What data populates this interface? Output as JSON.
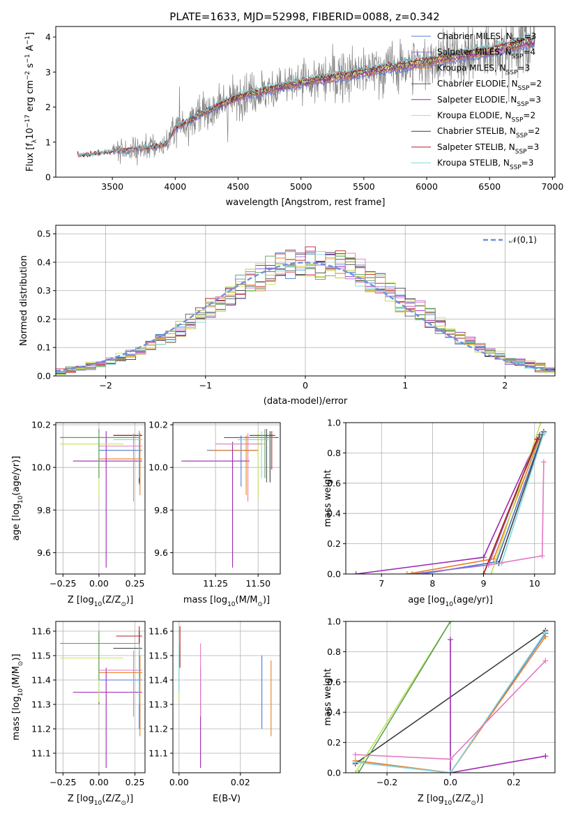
{
  "figure_title": "PLATE=1633, MJD=52998, FIBERID=0088, z=0.342",
  "colors": {
    "Chabrier MILES": "#4c78d0",
    "Salpeter MILES": "#9a6cd2",
    "Kroupa MILES": "#e87d1e",
    "Chabrier ELODIE": "#555555",
    "Salpeter ELODIE": "#9b27b0",
    "Kroupa ELODIE": "#c5e35b",
    "Chabrier STELIB": "#3a3a3a",
    "Salpeter STELIB": "#b21f1f",
    "Kroupa STELIB": "#7fd6e0",
    "pink": "#e377c2",
    "green": "#5a9e5a",
    "olive": "#c9c93a"
  },
  "legend": [
    {
      "text": "Chabrier MILES, N",
      "sub": "SSP",
      "tail": "=3",
      "key": "Chabrier MILES"
    },
    {
      "text": "Salpeter MILES, N",
      "sub": "SSP",
      "tail": "=4",
      "key": "Salpeter MILES"
    },
    {
      "text": "Kroupa MILES, N",
      "sub": "SSP",
      "tail": "=3",
      "key": "Kroupa MILES"
    },
    {
      "text": "Chabrier ELODIE, N",
      "sub": "SSP",
      "tail": "=2",
      "key": "Chabrier ELODIE"
    },
    {
      "text": "Salpeter ELODIE, N",
      "sub": "SSP",
      "tail": "=3",
      "key": "Salpeter ELODIE"
    },
    {
      "text": "Kroupa ELODIE, N",
      "sub": "SSP",
      "tail": "=2",
      "key": "Kroupa ELODIE"
    },
    {
      "text": "Chabrier STELIB, N",
      "sub": "SSP",
      "tail": "=2",
      "key": "Chabrier STELIB"
    },
    {
      "text": "Salpeter STELIB, N",
      "sub": "SSP",
      "tail": "=3",
      "key": "Salpeter STELIB"
    },
    {
      "text": "Kroupa STELIB, N",
      "sub": "SSP",
      "tail": "=3",
      "key": "Kroupa STELIB"
    }
  ],
  "chart_data": [
    {
      "type": "line",
      "id": "spectrum",
      "xlabel": "wavelength [Angstrom, rest frame]",
      "ylabel_parts": [
        "Flux [f",
        "λ",
        "10",
        "−17",
        " erg cm",
        "−2",
        " s",
        "−1",
        " A",
        "−1",
        "]"
      ],
      "xlim": [
        3050,
        7020
      ],
      "ylim": [
        0,
        4.3
      ],
      "xticks": [
        3500,
        4000,
        4500,
        5000,
        5500,
        6000,
        6500,
        7000
      ],
      "yticks": [
        0,
        1,
        2,
        3,
        4
      ],
      "data_range": [
        3220,
        6860
      ],
      "model_anchors": {
        "x": [
          3220,
          3500,
          3800,
          3930,
          4000,
          4200,
          4500,
          5000,
          5500,
          6000,
          6500,
          6860
        ],
        "y": [
          0.6,
          0.72,
          0.85,
          0.95,
          1.4,
          1.8,
          2.3,
          2.7,
          3.0,
          3.3,
          3.6,
          3.9
        ]
      }
    },
    {
      "type": "bar",
      "id": "residuals",
      "xlabel": "(data-model)/error",
      "ylabel": "Normed distribution",
      "xlim": [
        -2.5,
        2.5
      ],
      "ylim": [
        0,
        0.53
      ],
      "xticks": [
        -2,
        -1,
        0,
        1,
        2
      ],
      "xtick_labels": [
        "−2",
        "−1",
        "0",
        "1",
        "2"
      ],
      "yticks": [
        0,
        0.1,
        0.2,
        0.3,
        0.4,
        0.5
      ],
      "ytick_labels": [
        "0.0",
        "0.1",
        "0.2",
        "0.3",
        "0.4",
        "0.5"
      ],
      "bin_width": 0.1,
      "reference": {
        "name": "𝒩(0,1)",
        "mean": 0,
        "sigma": 1
      }
    },
    {
      "type": "scatter",
      "id": "age-vs-Z",
      "xlabel_parts": [
        "Z [log",
        "10",
        "(Z/Z",
        "⊙",
        ")]"
      ],
      "ylabel_parts": [
        "age  [log",
        "10",
        "(age/yr)]"
      ],
      "xlim": [
        -0.3,
        0.32
      ],
      "ylim": [
        9.5,
        10.21
      ],
      "xticks": [
        -0.25,
        0,
        0.25
      ],
      "xtick_labels": [
        "−0.25",
        "0.00",
        "0.25"
      ],
      "yticks": [
        9.6,
        9.8,
        10.0,
        10.2
      ],
      "ytick_labels": [
        "9.6",
        "9.8",
        "10.0",
        "10.2"
      ],
      "points": [
        {
          "c": "Chabrier MILES",
          "x": 0.28,
          "y": 10.08,
          "xlo": 0.0,
          "xhi": 0.3,
          "ylo": 9.92,
          "yhi": 10.15
        },
        {
          "c": "Kroupa MILES",
          "x": 0.285,
          "y": 10.04,
          "xlo": 0.0,
          "xhi": 0.3,
          "ylo": 9.87,
          "yhi": 10.16
        },
        {
          "c": "Chabrier ELODIE",
          "x": 0.0,
          "y": 10.14,
          "xlo": -0.27,
          "xhi": 0.28,
          "ylo": 9.95,
          "yhi": 10.18
        },
        {
          "c": "Salpeter ELODIE",
          "x": 0.05,
          "y": 10.03,
          "xlo": -0.18,
          "xhi": 0.3,
          "ylo": 9.53,
          "yhi": 10.17
        },
        {
          "c": "Kroupa ELODIE",
          "x": 0.0,
          "y": 10.11,
          "xlo": -0.27,
          "xhi": 0.17,
          "ylo": 9.86,
          "yhi": 10.17
        },
        {
          "c": "Chabrier STELIB",
          "x": 0.28,
          "y": 10.15,
          "xlo": 0.1,
          "xhi": 0.3,
          "ylo": 9.93,
          "yhi": 10.17
        },
        {
          "c": "Salpeter STELIB",
          "x": 0.28,
          "y": 10.15,
          "xlo": 0.1,
          "xhi": 0.3,
          "ylo": 9.95,
          "yhi": 10.17
        },
        {
          "c": "Kroupa STELIB",
          "x": 0.28,
          "y": 10.13,
          "xlo": 0.1,
          "xhi": 0.3,
          "ylo": 9.95,
          "yhi": 10.17
        },
        {
          "c": "pink",
          "x": 0.24,
          "y": 10.1,
          "xlo": 0.0,
          "xhi": 0.3,
          "ylo": 9.84,
          "yhi": 10.16
        },
        {
          "c": "green",
          "x": 0.0,
          "y": 10.14,
          "xlo": -0.27,
          "xhi": 0.28,
          "ylo": 9.95,
          "yhi": 10.18
        }
      ]
    },
    {
      "type": "scatter",
      "id": "age-vs-mass",
      "xlabel_parts": [
        "mass [log",
        "10",
        "(M/M",
        "⊙",
        ")]"
      ],
      "xlim": [
        11.0,
        11.63
      ],
      "ylim": [
        9.5,
        10.21
      ],
      "xticks": [
        11.25,
        11.5
      ],
      "xtick_labels": [
        "11.25",
        "11.50"
      ],
      "yticks": [
        9.6,
        9.8,
        10.0,
        10.2
      ],
      "ytick_labels": [
        "9.6",
        "9.8",
        "10.0",
        "10.2"
      ],
      "points": [
        {
          "c": "Chabrier MILES",
          "x": 11.4,
          "y": 10.08,
          "xlo": 11.2,
          "xhi": 11.5,
          "ylo": 9.91,
          "yhi": 10.15
        },
        {
          "c": "Kroupa MILES",
          "x": 11.43,
          "y": 10.08,
          "xlo": 11.22,
          "xhi": 11.5,
          "ylo": 9.87,
          "yhi": 10.15
        },
        {
          "c": "Chabrier ELODIE",
          "x": 11.55,
          "y": 10.14,
          "xlo": 11.3,
          "xhi": 11.6,
          "ylo": 9.93,
          "yhi": 10.18
        },
        {
          "c": "Salpeter ELODIE",
          "x": 11.35,
          "y": 10.03,
          "xlo": 11.05,
          "xhi": 11.45,
          "ylo": 9.53,
          "yhi": 10.12
        },
        {
          "c": "Kroupa ELODIE",
          "x": 11.5,
          "y": 10.11,
          "xlo": 11.3,
          "xhi": 11.55,
          "ylo": 9.86,
          "yhi": 10.17
        },
        {
          "c": "Chabrier STELIB",
          "x": 11.57,
          "y": 10.15,
          "xlo": 11.45,
          "xhi": 11.6,
          "ylo": 9.93,
          "yhi": 10.17
        },
        {
          "c": "Salpeter STELIB",
          "x": 11.58,
          "y": 10.14,
          "xlo": 11.45,
          "xhi": 11.62,
          "ylo": 9.99,
          "yhi": 10.17
        },
        {
          "c": "Kroupa STELIB",
          "x": 11.52,
          "y": 10.13,
          "xlo": 11.38,
          "xhi": 11.58,
          "ylo": 9.95,
          "yhi": 10.17
        },
        {
          "c": "pink",
          "x": 11.44,
          "y": 10.11,
          "xlo": 11.25,
          "xhi": 11.52,
          "ylo": 9.84,
          "yhi": 10.16
        },
        {
          "c": "green",
          "x": 11.54,
          "y": 10.14,
          "xlo": 11.4,
          "xhi": 11.6,
          "ylo": 9.95,
          "yhi": 10.18
        }
      ]
    },
    {
      "type": "line",
      "id": "weight-vs-age",
      "xlabel_parts": [
        "age  [log",
        "10",
        "(age/yr)]"
      ],
      "ylabel": "mass weight",
      "xlim": [
        6.3,
        10.4
      ],
      "ylim": [
        0,
        1.0
      ],
      "xticks": [
        7,
        8,
        9,
        10
      ],
      "xtick_labels": [
        "7",
        "8",
        "9",
        "10"
      ],
      "yticks": [
        0,
        0.2,
        0.4,
        0.6,
        0.8,
        1.0
      ],
      "ytick_labels": [
        "0.0",
        "0.2",
        "0.4",
        "0.6",
        "0.8",
        "1.0"
      ],
      "series": [
        {
          "c": "Chabrier MILES",
          "x": [
            7.8,
            9.25,
            10.15
          ],
          "y": [
            0.0,
            0.08,
            0.92
          ]
        },
        {
          "c": "Salpeter MILES",
          "x": [
            7.6,
            9.1,
            10.05
          ],
          "y": [
            0.0,
            0.06,
            0.89
          ]
        },
        {
          "c": "Kroupa MILES",
          "x": [
            7.5,
            9.2,
            10.1
          ],
          "y": [
            0.0,
            0.1,
            0.9
          ]
        },
        {
          "c": "Chabrier ELODIE",
          "x": [
            9.0,
            10.1
          ],
          "y": [
            0.0,
            0.92
          ]
        },
        {
          "c": "Salpeter ELODIE",
          "x": [
            6.5,
            9.0,
            10.05
          ],
          "y": [
            0.0,
            0.11,
            0.89
          ]
        },
        {
          "c": "Kroupa ELODIE",
          "x": [
            9.15,
            10.12
          ],
          "y": [
            0.0,
            1.0
          ]
        },
        {
          "c": "Chabrier STELIB",
          "x": [
            9.3,
            10.18
          ],
          "y": [
            0.07,
            0.94
          ]
        },
        {
          "c": "Salpeter STELIB",
          "x": [
            9.0,
            10.05
          ],
          "y": [
            0.0,
            0.89
          ]
        },
        {
          "c": "Kroupa STELIB",
          "x": [
            9.35,
            10.18
          ],
          "y": [
            0.07,
            0.93
          ]
        },
        {
          "c": "pink",
          "x": [
            9.1,
            10.15,
            10.18
          ],
          "y": [
            0.06,
            0.12,
            0.74
          ]
        }
      ]
    },
    {
      "type": "scatter",
      "id": "mass-vs-Z",
      "xlabel_parts": [
        "Z [log",
        "10",
        "(Z/Z",
        "⊙",
        ")]"
      ],
      "ylabel_parts": [
        "mass [log",
        "10",
        "(M/M",
        "⊙",
        ")]"
      ],
      "xlim": [
        -0.3,
        0.32
      ],
      "ylim": [
        11.02,
        11.64
      ],
      "xticks": [
        -0.25,
        0,
        0.25
      ],
      "xtick_labels": [
        "−0.25",
        "0.00",
        "0.25"
      ],
      "yticks": [
        11.1,
        11.2,
        11.3,
        11.4,
        11.5,
        11.6
      ],
      "ytick_labels": [
        "11.1",
        "11.2",
        "11.3",
        "11.4",
        "11.5",
        "11.6"
      ],
      "points": [
        {
          "c": "Chabrier MILES",
          "x": 0.28,
          "y": 11.4,
          "xlo": 0.0,
          "xhi": 0.3,
          "ylo": 11.2,
          "yhi": 11.5
        },
        {
          "c": "Kroupa MILES",
          "x": 0.285,
          "y": 11.43,
          "xlo": 0.0,
          "xhi": 0.3,
          "ylo": 11.17,
          "yhi": 11.5
        },
        {
          "c": "Chabrier ELODIE",
          "x": 0.0,
          "y": 11.55,
          "xlo": -0.27,
          "xhi": 0.28,
          "ylo": 11.3,
          "yhi": 11.6
        },
        {
          "c": "Salpeter ELODIE",
          "x": 0.05,
          "y": 11.35,
          "xlo": -0.18,
          "xhi": 0.3,
          "ylo": 11.04,
          "yhi": 11.45
        },
        {
          "c": "Kroupa ELODIE",
          "x": 0.0,
          "y": 11.49,
          "xlo": -0.27,
          "xhi": 0.17,
          "ylo": 11.31,
          "yhi": 11.55
        },
        {
          "c": "Chabrier STELIB",
          "x": 0.28,
          "y": 11.53,
          "xlo": 0.1,
          "xhi": 0.3,
          "ylo": 11.4,
          "yhi": 11.6
        },
        {
          "c": "Salpeter STELIB",
          "x": 0.28,
          "y": 11.58,
          "xlo": 0.12,
          "xhi": 0.3,
          "ylo": 11.45,
          "yhi": 11.62
        },
        {
          "c": "Kroupa STELIB",
          "x": 0.28,
          "y": 11.44,
          "xlo": 0.1,
          "xhi": 0.3,
          "ylo": 11.3,
          "yhi": 11.55
        },
        {
          "c": "pink",
          "x": 0.24,
          "y": 11.44,
          "xlo": 0.0,
          "xhi": 0.3,
          "ylo": 11.25,
          "yhi": 11.52
        },
        {
          "c": "green",
          "x": 0.0,
          "y": 11.55,
          "xlo": -0.27,
          "xhi": 0.28,
          "ylo": 11.4,
          "yhi": 11.6
        }
      ]
    },
    {
      "type": "scatter",
      "id": "mass-vs-EBV",
      "xlabel": "E(B-V)",
      "xlim": [
        -0.002,
        0.033
      ],
      "ylim": [
        11.02,
        11.64
      ],
      "xticks": [
        0.0,
        0.02
      ],
      "xtick_labels": [
        "0.00",
        "0.02"
      ],
      "yticks": [
        11.1,
        11.2,
        11.3,
        11.4,
        11.5,
        11.6
      ],
      "ytick_labels": [
        "11.1",
        "11.2",
        "11.3",
        "11.4",
        "11.5",
        "11.6"
      ],
      "points": [
        {
          "c": "Chabrier MILES",
          "x": 0.027,
          "ylo": 11.2,
          "yhi": 11.5
        },
        {
          "c": "Kroupa MILES",
          "x": 0.03,
          "ylo": 11.17,
          "yhi": 11.48
        },
        {
          "c": "Salpeter ELODIE",
          "x": 0.007,
          "ylo": 11.04,
          "yhi": 11.45
        },
        {
          "c": "pink",
          "x": 0.007,
          "ylo": 11.25,
          "yhi": 11.55
        },
        {
          "c": "Kroupa ELODIE",
          "x": 0.0,
          "ylo": 11.31,
          "yhi": 11.5
        },
        {
          "c": "Salpeter STELIB",
          "x": 0.0003,
          "ylo": 11.45,
          "yhi": 11.62
        },
        {
          "c": "Kroupa STELIB",
          "x": 0.0,
          "ylo": 11.35,
          "yhi": 11.55
        }
      ]
    },
    {
      "type": "line",
      "id": "weight-vs-Z",
      "xlabel_parts": [
        "Z [log",
        "10",
        "(Z/Z",
        "⊙",
        ")]"
      ],
      "ylabel": "mass weight",
      "xlim": [
        -0.33,
        0.33
      ],
      "ylim": [
        0,
        1.0
      ],
      "xticks": [
        -0.2,
        0,
        0.2
      ],
      "xtick_labels": [
        "−0.2",
        "0.0",
        "0.2"
      ],
      "yticks": [
        0,
        0.2,
        0.4,
        0.6,
        0.8,
        1.0
      ],
      "ytick_labels": [
        "0.0",
        "0.2",
        "0.4",
        "0.6",
        "0.8",
        "1.0"
      ],
      "series": [
        {
          "c": "Chabrier MILES",
          "x": [
            -0.3,
            0.0,
            0.3
          ],
          "y": [
            0.07,
            0.0,
            0.92
          ]
        },
        {
          "c": "Kroupa MILES",
          "x": [
            -0.3,
            0.0,
            0.3
          ],
          "y": [
            0.08,
            0.0,
            0.9
          ]
        },
        {
          "c": "Chabrier STELIB",
          "x": [
            -0.3,
            0.3
          ],
          "y": [
            0.06,
            0.94
          ]
        },
        {
          "c": "Kroupa ELODIE",
          "x": [
            -0.3,
            0.0
          ],
          "y": [
            0.0,
            1.0
          ]
        },
        {
          "c": "green",
          "x": [
            -0.29,
            0.0
          ],
          "y": [
            0.0,
            1.0
          ]
        },
        {
          "c": "Salpeter ELODIE",
          "x": [
            0.0,
            0.0,
            0.3
          ],
          "y": [
            0.88,
            0.0,
            0.11
          ]
        },
        {
          "c": "Kroupa STELIB",
          "x": [
            -0.3,
            0.0,
            0.3
          ],
          "y": [
            0.07,
            0.0,
            0.93
          ]
        },
        {
          "c": "pink",
          "x": [
            -0.3,
            0.0,
            0.3
          ],
          "y": [
            0.12,
            0.09,
            0.74
          ]
        }
      ]
    }
  ]
}
